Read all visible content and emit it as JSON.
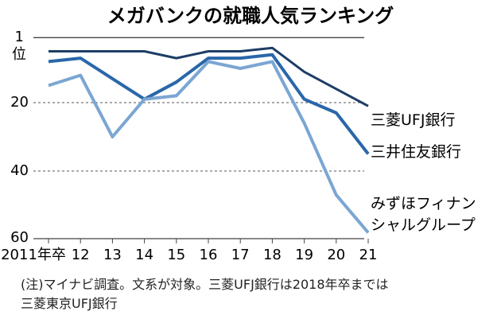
{
  "chart_data": {
    "type": "line",
    "title": "メガバンクの就職人気ランキング",
    "x": [
      "2011年卒",
      "12",
      "13",
      "14",
      "15",
      "16",
      "17",
      "18",
      "19",
      "20",
      "21"
    ],
    "y_ticks": [
      "1",
      "20",
      "40",
      "60"
    ],
    "y_unit": "位",
    "ylim": [
      1,
      60
    ],
    "y_inverted": true,
    "grid": "dashed at 20 and 40",
    "series": [
      {
        "name": "三菱UFJ銀行",
        "color": "#1d3d66",
        "values": [
          5,
          5,
          5,
          5,
          7,
          5,
          5,
          4,
          11,
          16,
          21
        ]
      },
      {
        "name": "三井住友銀行",
        "color": "#2a67a9",
        "values": [
          8,
          7,
          13,
          19,
          14,
          7,
          7,
          6,
          19,
          23,
          35
        ]
      },
      {
        "name": "みずほフィナンシャルグループ",
        "name_lines": [
          "みずほフィナン",
          "シャルグループ"
        ],
        "color": "#7ba6d3",
        "values": [
          15,
          12,
          30,
          19,
          18,
          8,
          10,
          8,
          26,
          47,
          58
        ]
      }
    ]
  },
  "note": [
    "(注)マイナビ調査。文系が対象。三菱UFJ銀行は2018年卒までは",
    "三菱東京UFJ銀行"
  ]
}
